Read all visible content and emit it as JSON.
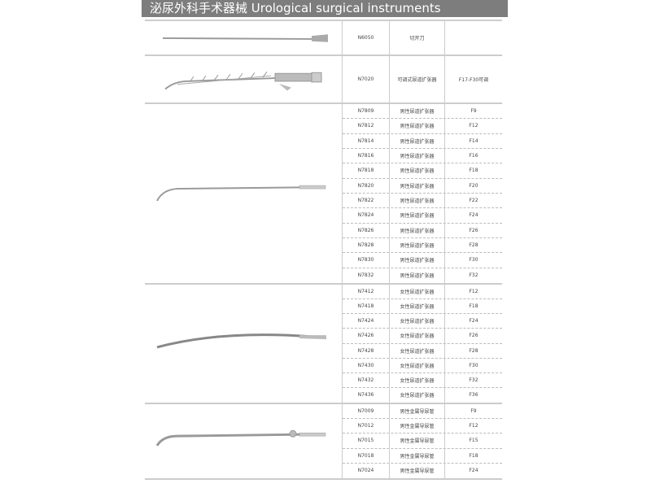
{
  "header": {
    "title": "泌尿外科手术器械 Urological surgical instruments"
  },
  "sections": [
    {
      "instrument_icon": "urethrotome-knife",
      "rows": [
        {
          "code": "N6050",
          "name": "切开刀",
          "spec": ""
        }
      ]
    },
    {
      "instrument_icon": "adjustable-urethral-dilator",
      "rows": [
        {
          "code": "N7020",
          "name": "可调式尿道扩张器",
          "spec": "F17-F30可调"
        }
      ]
    },
    {
      "instrument_icon": "male-urethral-sound",
      "rows": [
        {
          "code": "N7809",
          "name": "男性尿道扩张器",
          "spec": "F9"
        },
        {
          "code": "N7812",
          "name": "男性尿道扩张器",
          "spec": "F12"
        },
        {
          "code": "N7814",
          "name": "男性尿道扩张器",
          "spec": "F14"
        },
        {
          "code": "N7816",
          "name": "男性尿道扩张器",
          "spec": "F16"
        },
        {
          "code": "N7818",
          "name": "男性尿道扩张器",
          "spec": "F18"
        },
        {
          "code": "N7820",
          "name": "男性尿道扩张器",
          "spec": "F20"
        },
        {
          "code": "N7822",
          "name": "男性尿道扩张器",
          "spec": "F22"
        },
        {
          "code": "N7824",
          "name": "男性尿道扩张器",
          "spec": "F24"
        },
        {
          "code": "N7826",
          "name": "男性尿道扩张器",
          "spec": "F26"
        },
        {
          "code": "N7828",
          "name": "男性尿道扩张器",
          "spec": "F28"
        },
        {
          "code": "N7830",
          "name": "男性尿道扩张器",
          "spec": "F30"
        },
        {
          "code": "N7832",
          "name": "男性尿道扩张器",
          "spec": "F32"
        }
      ]
    },
    {
      "instrument_icon": "female-urethral-sound",
      "rows": [
        {
          "code": "N7412",
          "name": "女性尿道扩张器",
          "spec": "F12"
        },
        {
          "code": "N7418",
          "name": "女性尿道扩张器",
          "spec": "F18"
        },
        {
          "code": "N7424",
          "name": "女性尿道扩张器",
          "spec": "F24"
        },
        {
          "code": "N7426",
          "name": "女性尿道扩张器",
          "spec": "F26"
        },
        {
          "code": "N7428",
          "name": "女性尿道扩张器",
          "spec": "F28"
        },
        {
          "code": "N7430",
          "name": "女性尿道扩张器",
          "spec": "F30"
        },
        {
          "code": "N7432",
          "name": "女性尿道扩张器",
          "spec": "F32"
        },
        {
          "code": "N7436",
          "name": "女性尿道扩张器",
          "spec": "F36"
        }
      ]
    },
    {
      "instrument_icon": "male-metal-catheter",
      "rows": [
        {
          "code": "N7009",
          "name": "男性金属导尿管",
          "spec": "F9"
        },
        {
          "code": "N7012",
          "name": "男性金属导尿管",
          "spec": "F12"
        },
        {
          "code": "N7015",
          "name": "男性金属导尿管",
          "spec": "F15"
        },
        {
          "code": "N7018",
          "name": "男性金属导尿管",
          "spec": "F18"
        },
        {
          "code": "N7024",
          "name": "男性金属导尿管",
          "spec": "F24"
        }
      ]
    }
  ]
}
